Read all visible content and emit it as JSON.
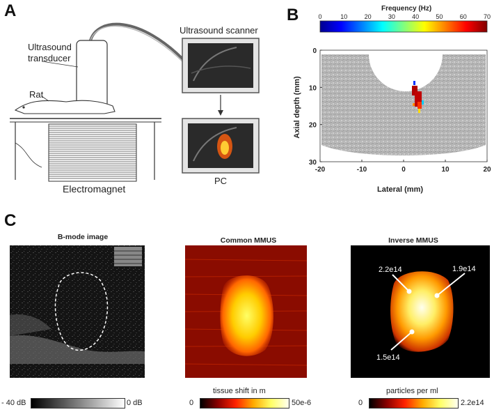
{
  "panels": {
    "a": {
      "letter": "A",
      "labels": {
        "transducer_1": "Ultrasound",
        "transducer_2": "transducer",
        "rat": "Rat",
        "scanner": "Ultrasound scanner",
        "electromagnet": "Electromagnet",
        "pc": "PC"
      }
    },
    "b": {
      "letter": "B",
      "colorbar_title": "Frequency (Hz)",
      "ylabel": "Axial depth (mm)",
      "xlabel": "Lateral (mm)"
    },
    "c": {
      "letter": "C",
      "titles": {
        "bmode": "B-mode image",
        "common": "Common MMUS",
        "inverse": "Inverse MMUS"
      },
      "annotations": {
        "a1": "2.2e14",
        "a2": "1.9e14",
        "a3": "1.5e14"
      },
      "colorbars": {
        "bmode": {
          "min": "- 40 dB",
          "max": "0 dB"
        },
        "common": {
          "title": "tissue shift in m",
          "min": "0",
          "max": "50e-6"
        },
        "inverse": {
          "title": "particles per ml",
          "min": "0",
          "max": "2.2e14"
        }
      }
    }
  },
  "chart_data": {
    "type": "heatmap",
    "xlabel": "Lateral (mm)",
    "ylabel": "Axial depth (mm)",
    "colorbar_title": "Frequency (Hz)",
    "colorbar_range": [
      0,
      70
    ],
    "colorbar_ticks": [
      0,
      10,
      20,
      30,
      40,
      50,
      60,
      70
    ],
    "xlim": [
      -20,
      20
    ],
    "ylim": [
      30,
      0
    ],
    "xticks": [
      -20,
      -10,
      0,
      10,
      20
    ],
    "yticks": [
      0,
      10,
      20,
      30
    ],
    "cluster": {
      "lateral_mm": [
        2,
        5
      ],
      "depth_mm": [
        5,
        15
      ],
      "dominant_frequency_hz": 70
    }
  }
}
